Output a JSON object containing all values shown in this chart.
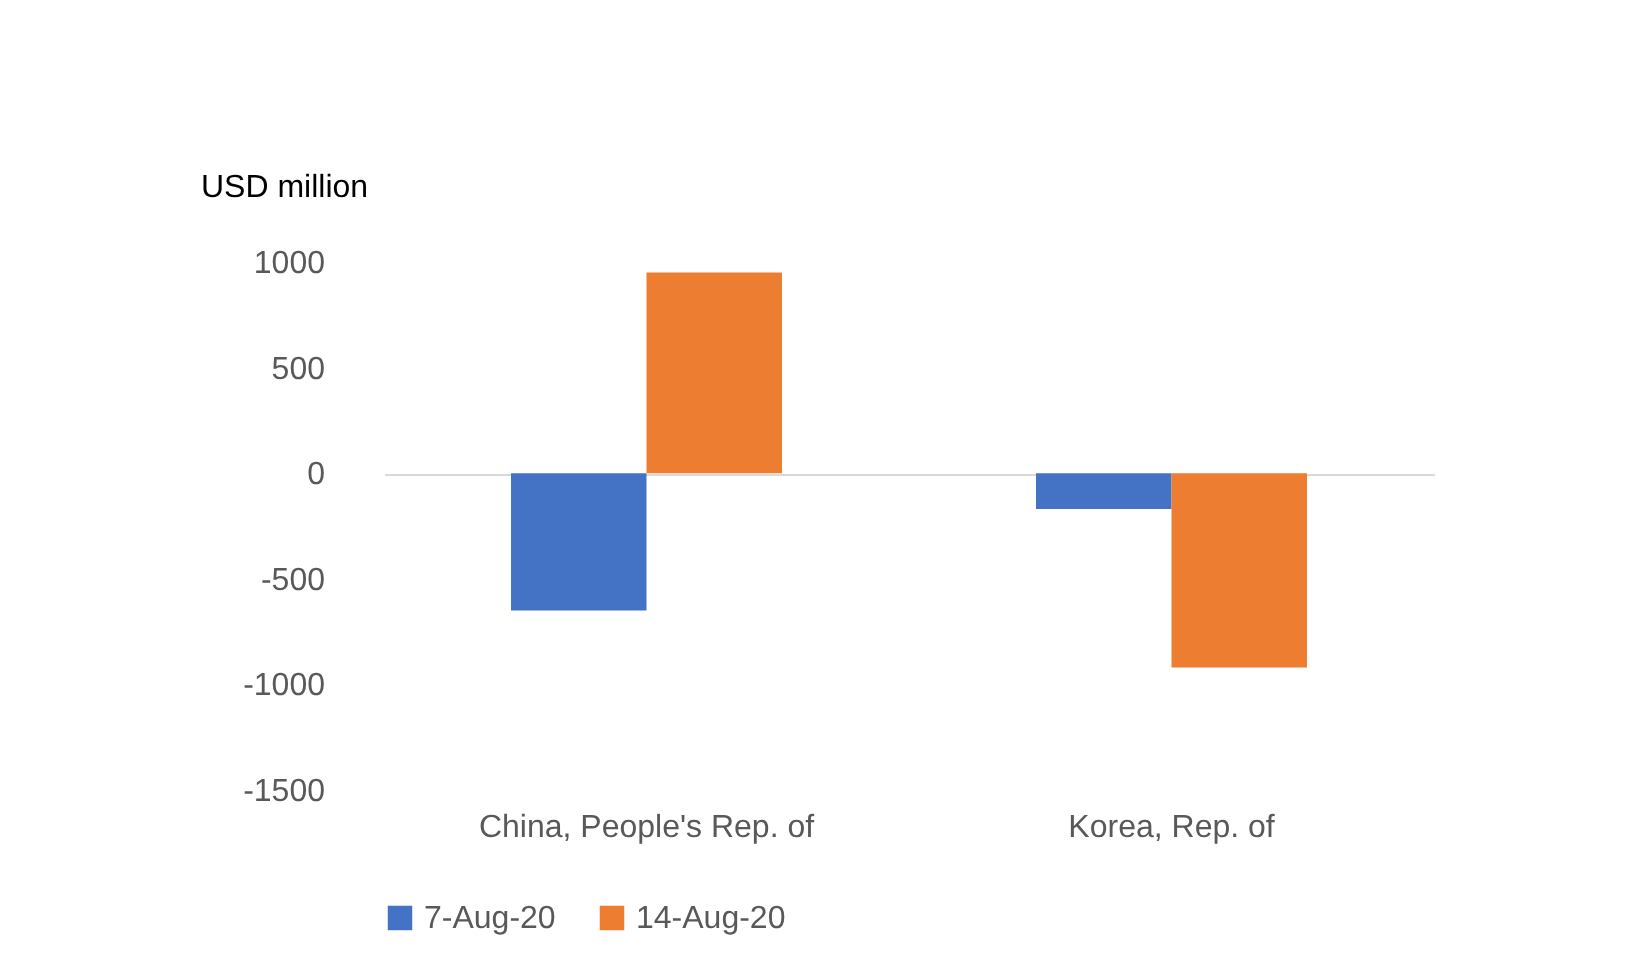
{
  "chart_data": {
    "type": "bar",
    "ylabel": "USD million",
    "categories": [
      "China, People's Rep. of",
      "Korea, Rep. of"
    ],
    "series": [
      {
        "name": "7-Aug-20",
        "color": "#4472c4",
        "values": [
          -650,
          -170
        ]
      },
      {
        "name": "14-Aug-20",
        "color": "#ed7d31",
        "values": [
          950,
          -920
        ]
      }
    ],
    "ylim": [
      -1500,
      1000
    ],
    "yticks": [
      -1500,
      -1000,
      -500,
      0,
      500,
      1000
    ],
    "legend": "bottom"
  }
}
